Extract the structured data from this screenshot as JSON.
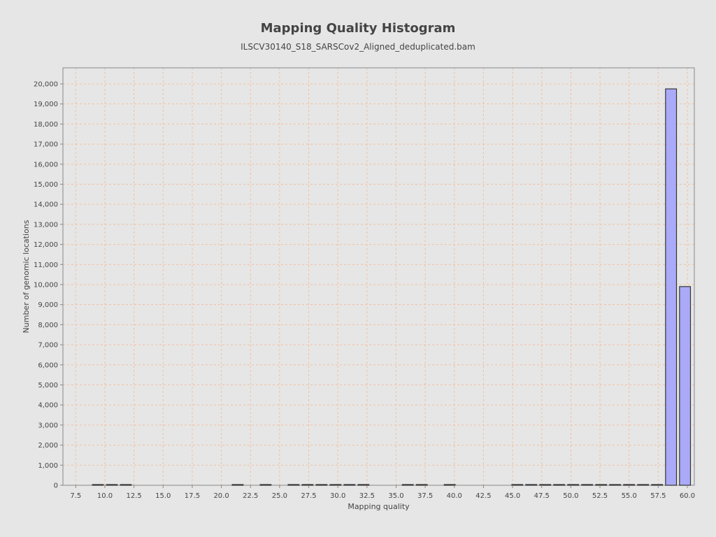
{
  "chart_data": {
    "type": "bar",
    "title": "Mapping Quality Histogram",
    "subtitle": "ILSCV30140_S18_SARSCov2_Aligned_deduplicated.bam",
    "xlabel": "Mapping quality",
    "ylabel": "Number of genomic locations",
    "xlim": [
      6.4,
      60.6
    ],
    "ylim": [
      0,
      20800
    ],
    "x_ticks": [
      7.5,
      10.0,
      12.5,
      15.0,
      17.5,
      20.0,
      22.5,
      25.0,
      27.5,
      30.0,
      32.5,
      35.0,
      37.5,
      40.0,
      42.5,
      45.0,
      47.5,
      50.0,
      52.5,
      55.0,
      57.5,
      60.0
    ],
    "x_tick_labels": [
      "7.5",
      "10.0",
      "12.5",
      "15.0",
      "17.5",
      "20.0",
      "22.5",
      "25.0",
      "27.5",
      "30.0",
      "32.5",
      "35.0",
      "37.5",
      "40.0",
      "42.5",
      "45.0",
      "47.5",
      "50.0",
      "52.5",
      "55.0",
      "57.5",
      "60.0"
    ],
    "y_ticks": [
      0,
      1000,
      2000,
      3000,
      4000,
      5000,
      6000,
      7000,
      8000,
      9000,
      10000,
      11000,
      12000,
      13000,
      14000,
      15000,
      16000,
      17000,
      18000,
      19000,
      20000
    ],
    "y_tick_labels": [
      "0",
      "1,000",
      "2,000",
      "3,000",
      "4,000",
      "5,000",
      "6,000",
      "7,000",
      "8,000",
      "9,000",
      "10,000",
      "11,000",
      "12,000",
      "13,000",
      "14,000",
      "15,000",
      "16,000",
      "17,000",
      "18,000",
      "19,000",
      "20,000"
    ],
    "grid": true,
    "bin_width": 1,
    "x": [
      9.4,
      10.6,
      11.8,
      21.4,
      23.8,
      26.2,
      27.4,
      28.6,
      29.8,
      31.0,
      32.2,
      36.0,
      37.2,
      39.6,
      45.4,
      46.6,
      47.8,
      49.0,
      50.2,
      51.4,
      52.6,
      53.8,
      55.0,
      56.2,
      57.4,
      58.6,
      59.8
    ],
    "values": [
      20,
      20,
      20,
      20,
      20,
      20,
      20,
      20,
      20,
      20,
      20,
      20,
      20,
      20,
      20,
      20,
      20,
      20,
      20,
      20,
      20,
      20,
      20,
      20,
      20,
      19750,
      9900
    ],
    "colors": {
      "bar_fill": "#aaaaf8",
      "bar_stroke": "#333333",
      "grid": "#f2c0a0",
      "plot_bg": "#e6e6e6"
    }
  }
}
